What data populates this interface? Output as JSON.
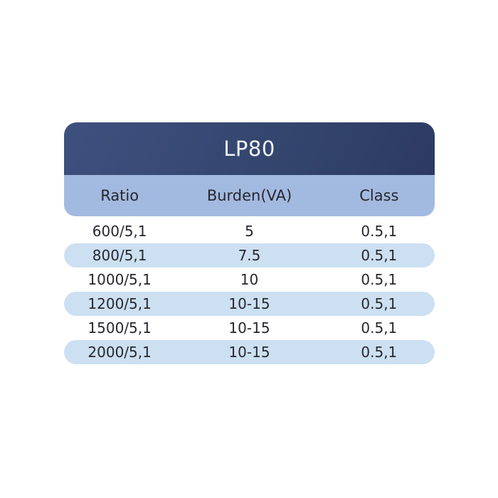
{
  "table": {
    "title": "LP80",
    "columns": [
      "Ratio",
      "Burden(VA)",
      "Class"
    ],
    "rows": [
      [
        "600/5,1",
        "5",
        "0.5,1"
      ],
      [
        "800/5,1",
        "7.5",
        "0.5,1"
      ],
      [
        "1000/5,1",
        "10",
        "0.5,1"
      ],
      [
        "1200/5,1",
        "10-15",
        "0.5,1"
      ],
      [
        "1500/5,1",
        "10-15",
        "0.5,1"
      ],
      [
        "2000/5,1",
        "10-15",
        "0.5,1"
      ]
    ],
    "colors": {
      "header_gradient_start": "#3e507e",
      "header_gradient_end": "#2c3a62",
      "subheader_bg": "#a3bae0",
      "row_alt_bg": "#cce0f2",
      "text": "#27272f",
      "title_text": "#f2f5fc",
      "page_bg": "#ffffff"
    }
  }
}
